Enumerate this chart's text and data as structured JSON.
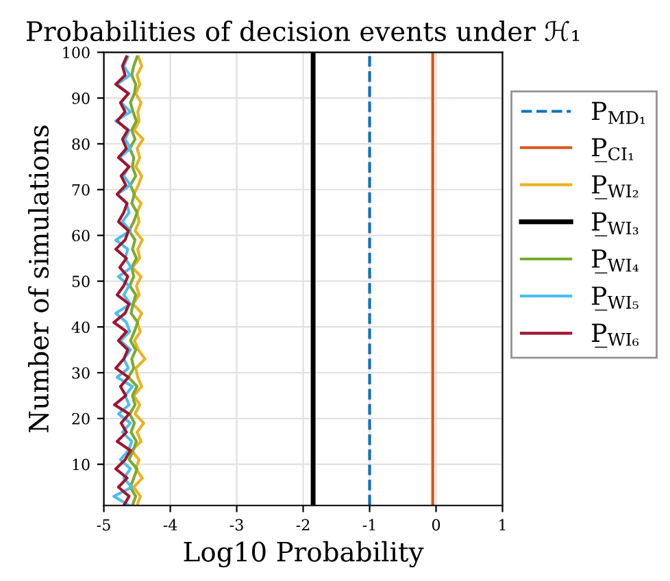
{
  "chart_data": {
    "type": "line",
    "title": "Probabilities of decision events under ℋ₁",
    "xlabel": "Log10 Probability",
    "ylabel": "Number of simulations",
    "xlim": [
      -5,
      1
    ],
    "xticks": [
      -5,
      -4,
      -3,
      -2,
      -1,
      0,
      1
    ],
    "ylim": [
      1,
      100
    ],
    "yticks": [
      10,
      20,
      30,
      40,
      50,
      60,
      70,
      80,
      90,
      100
    ],
    "grid": true,
    "legend": "right",
    "marker": "none",
    "series": [
      {
        "name": "P$_{MD₁}$",
        "color": "#0072bd",
        "line_style": "dashed",
        "x": [
          -1,
          -1
        ],
        "values": [
          1,
          100
        ]
      },
      {
        "name": "P̲$_{CI₁}$",
        "color": "#d95319",
        "x": [
          -0.05,
          -0.05
        ],
        "values": [
          1,
          100
        ]
      },
      {
        "name": "P̲$_{WI₂}$",
        "color": "#edb120",
        "x": [
          -4.5,
          -4.45,
          -4.55,
          -4.42,
          -4.52,
          -4.47,
          -4.58,
          -4.44,
          -4.5,
          -4.4,
          -4.53,
          -4.46,
          -4.55,
          -4.43,
          -4.49,
          -4.52,
          -4.38,
          -4.48,
          -4.54,
          -4.45,
          -4.5,
          -4.43,
          -4.56,
          -4.47,
          -4.51,
          -4.44,
          -4.57,
          -4.46,
          -4.49,
          -4.42,
          -4.53,
          -4.47,
          -4.5,
          -4.44,
          -4.55,
          -4.48,
          -4.43,
          -4.52,
          -4.46,
          -4.5,
          -4.41,
          -4.54,
          -4.47,
          -4.49,
          -4.44,
          -4.52,
          -4.46,
          -4.5,
          -4.43,
          -4.48
        ],
        "values": [
          1,
          3,
          5,
          7,
          9,
          11,
          13,
          15,
          17,
          19,
          21,
          23,
          25,
          27,
          29,
          31,
          33,
          35,
          37,
          39,
          41,
          43,
          45,
          47,
          49,
          51,
          53,
          55,
          57,
          59,
          61,
          63,
          65,
          67,
          69,
          71,
          73,
          75,
          77,
          79,
          81,
          83,
          85,
          87,
          89,
          91,
          93,
          95,
          97,
          99
        ]
      },
      {
        "name": "P̲$_{WI₃}$",
        "color": "#000000",
        "x": [
          -1.85,
          -1.85
        ],
        "values": [
          1,
          100
        ]
      },
      {
        "name": "P̲$_{WI₄}$",
        "color": "#77ac30",
        "x": [
          -4.57,
          -4.52,
          -4.6,
          -4.55,
          -4.5,
          -4.62,
          -4.56,
          -4.51,
          -4.59,
          -4.54,
          -4.61,
          -4.53,
          -4.57,
          -4.5,
          -4.63,
          -4.55,
          -4.58,
          -4.52,
          -4.6,
          -4.54,
          -4.49,
          -4.59,
          -4.56,
          -4.52,
          -4.61,
          -4.55,
          -4.58,
          -4.51,
          -4.57,
          -4.53,
          -4.62,
          -4.55,
          -4.5,
          -4.58,
          -4.54,
          -4.6,
          -4.52,
          -4.57,
          -4.55,
          -4.61,
          -4.53,
          -4.58,
          -4.51,
          -4.56,
          -4.6,
          -4.54,
          -4.52,
          -4.58,
          -4.55,
          -4.5
        ],
        "values": [
          1,
          3,
          5,
          7,
          9,
          11,
          13,
          15,
          17,
          19,
          21,
          23,
          25,
          27,
          29,
          31,
          33,
          35,
          37,
          39,
          41,
          43,
          45,
          47,
          49,
          51,
          53,
          55,
          57,
          59,
          61,
          63,
          65,
          67,
          69,
          71,
          73,
          75,
          77,
          79,
          81,
          83,
          85,
          87,
          89,
          91,
          93,
          95,
          97,
          99
        ]
      },
      {
        "name": "P̲$_{WI₅}$",
        "color": "#4dbeee",
        "x": [
          -4.62,
          -4.85,
          -4.58,
          -4.7,
          -4.6,
          -4.75,
          -4.63,
          -4.58,
          -4.72,
          -4.6,
          -4.78,
          -4.62,
          -4.68,
          -4.57,
          -4.8,
          -4.63,
          -4.7,
          -4.6,
          -4.75,
          -4.61,
          -4.66,
          -4.82,
          -4.6,
          -4.7,
          -4.62,
          -4.78,
          -4.59,
          -4.68,
          -4.64,
          -4.82,
          -4.6,
          -4.72,
          -4.62,
          -4.66,
          -4.8,
          -4.6,
          -4.7,
          -4.63,
          -4.76,
          -4.6,
          -4.68,
          -4.62,
          -4.82,
          -4.6,
          -4.74,
          -4.63,
          -4.8,
          -4.61,
          -4.7,
          -4.64
        ],
        "values": [
          1,
          3,
          5,
          7,
          9,
          11,
          13,
          15,
          17,
          19,
          21,
          23,
          25,
          27,
          29,
          31,
          33,
          35,
          37,
          39,
          41,
          43,
          45,
          47,
          49,
          51,
          53,
          55,
          57,
          59,
          61,
          63,
          65,
          67,
          69,
          71,
          73,
          75,
          77,
          79,
          81,
          83,
          85,
          87,
          89,
          91,
          93,
          95,
          97,
          99
        ]
      },
      {
        "name": "P̲$_{WI₆}$",
        "color": "#a2142f",
        "x": [
          -4.7,
          -4.62,
          -4.78,
          -4.65,
          -4.82,
          -4.68,
          -4.6,
          -4.8,
          -4.66,
          -4.74,
          -4.62,
          -4.84,
          -4.67,
          -4.75,
          -4.63,
          -4.82,
          -4.7,
          -4.64,
          -4.78,
          -4.66,
          -4.85,
          -4.68,
          -4.62,
          -4.8,
          -4.7,
          -4.64,
          -4.76,
          -4.66,
          -4.82,
          -4.68,
          -4.63,
          -4.78,
          -4.7,
          -4.65,
          -4.8,
          -4.67,
          -4.74,
          -4.62,
          -4.78,
          -4.66,
          -4.72,
          -4.64,
          -4.8,
          -4.68,
          -4.75,
          -4.63,
          -4.82,
          -4.68,
          -4.72,
          -4.66
        ],
        "values": [
          1,
          3,
          5,
          7,
          9,
          11,
          13,
          15,
          17,
          19,
          21,
          23,
          25,
          27,
          29,
          31,
          33,
          35,
          37,
          39,
          41,
          43,
          45,
          47,
          49,
          51,
          53,
          55,
          57,
          59,
          61,
          63,
          65,
          67,
          69,
          71,
          73,
          75,
          77,
          79,
          81,
          83,
          85,
          87,
          89,
          91,
          93,
          95,
          97,
          99
        ]
      }
    ]
  }
}
